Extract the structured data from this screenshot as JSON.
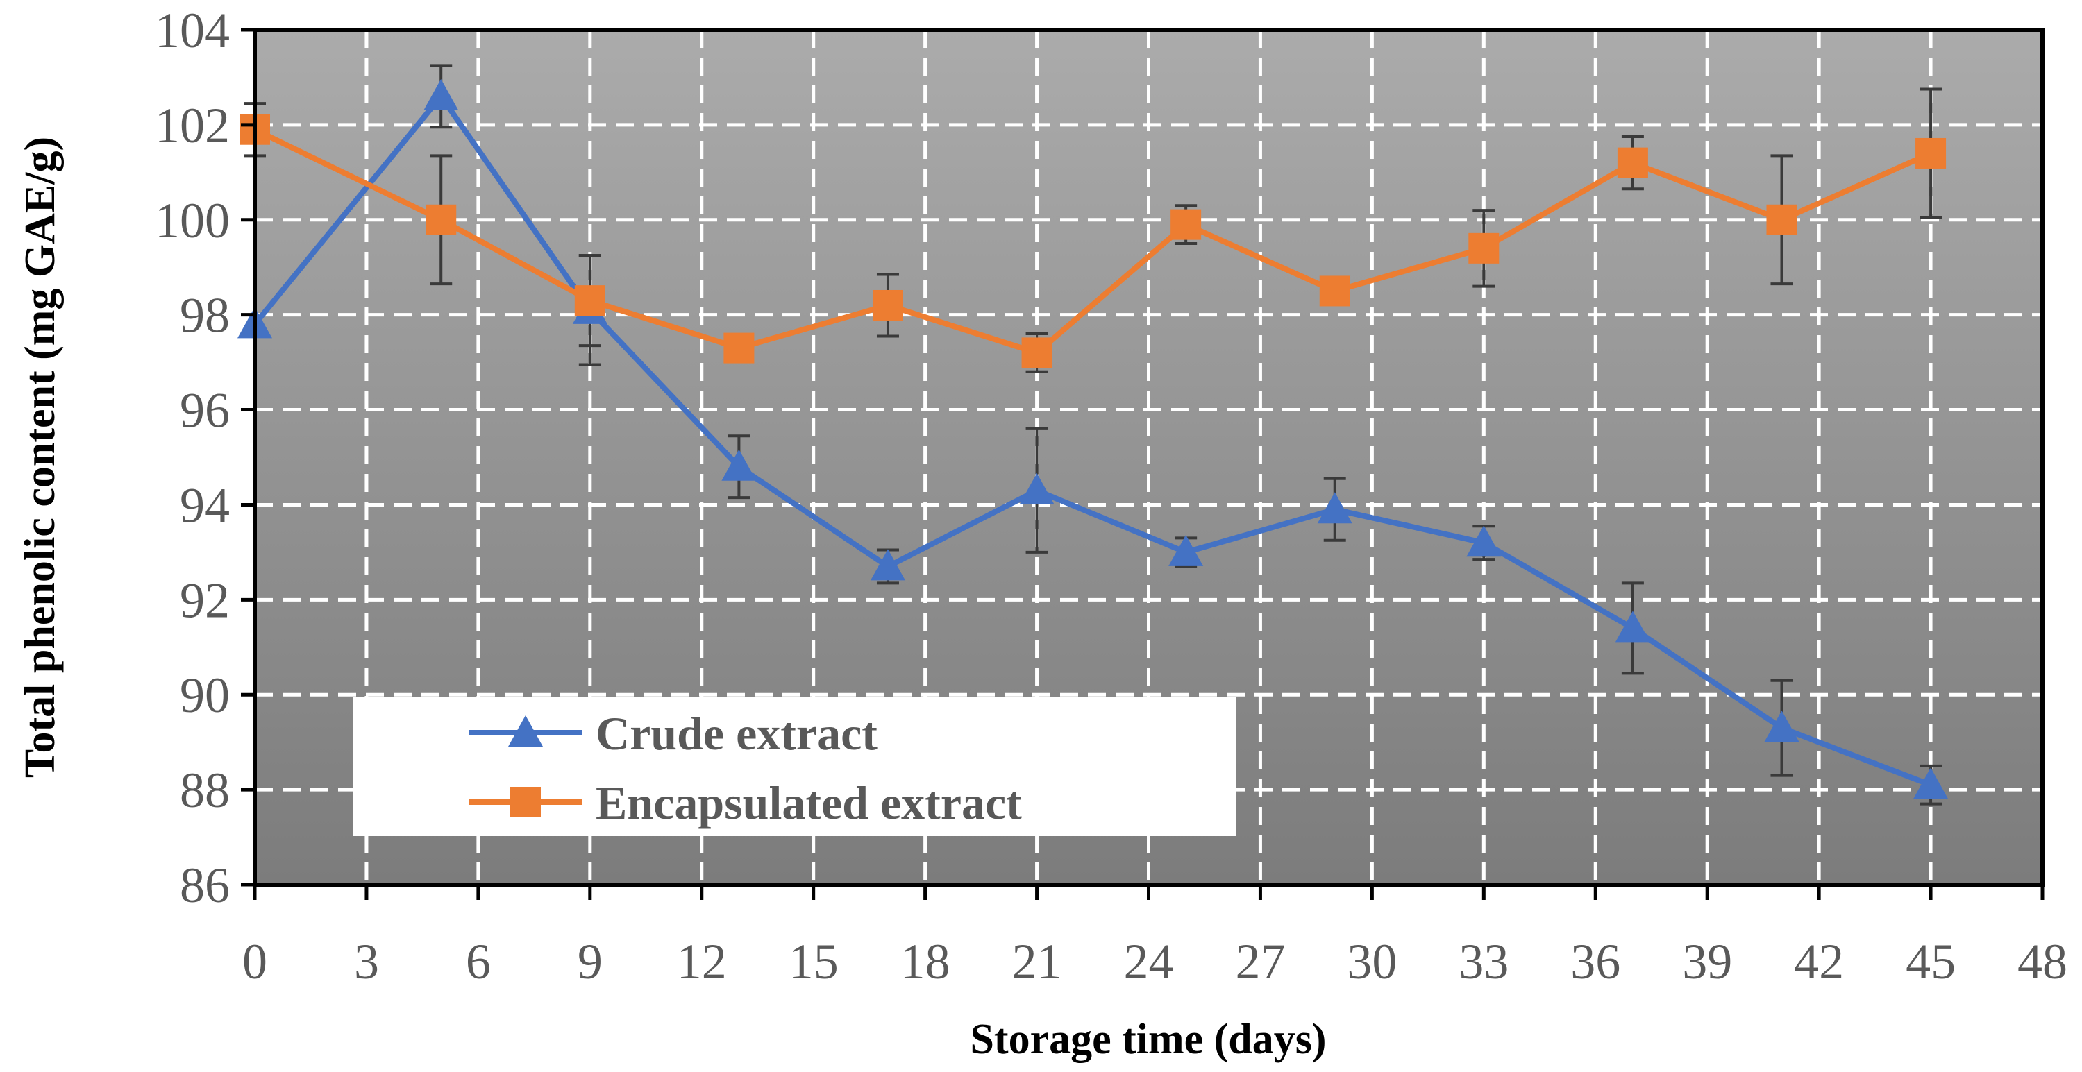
{
  "chart_data": {
    "type": "line",
    "title": "",
    "xlabel": "Storage time (days)",
    "ylabel": "Total phenolic content (mg GAE/g)",
    "xlim": [
      0,
      48
    ],
    "ylim": [
      86,
      104
    ],
    "xticks": [
      0,
      3,
      6,
      9,
      12,
      15,
      18,
      21,
      24,
      27,
      30,
      33,
      36,
      39,
      42,
      45,
      48
    ],
    "yticks": [
      86,
      88,
      90,
      92,
      94,
      96,
      98,
      100,
      102,
      104
    ],
    "grid": true,
    "legend_position": "bottom-left",
    "series": [
      {
        "name": "Crude extract",
        "color": "#4472C4",
        "marker": "triangle",
        "x": [
          0,
          5,
          9,
          13,
          17,
          21,
          25,
          29,
          33,
          37,
          41,
          45
        ],
        "values": [
          97.8,
          102.6,
          98.1,
          94.8,
          92.7,
          94.3,
          93.0,
          93.9,
          93.2,
          91.4,
          89.3,
          88.1
        ],
        "errors": [
          0.0,
          0.65,
          1.15,
          0.65,
          0.35,
          1.3,
          0.3,
          0.65,
          0.35,
          0.95,
          1.0,
          0.4
        ]
      },
      {
        "name": "Encapsulated extract",
        "color": "#ED7D31",
        "marker": "square",
        "x": [
          0,
          5,
          9,
          13,
          17,
          21,
          25,
          29,
          33,
          37,
          41,
          45
        ],
        "values": [
          101.9,
          100.0,
          98.3,
          97.3,
          98.2,
          97.2,
          99.9,
          98.5,
          99.4,
          101.2,
          100.0,
          101.4
        ],
        "errors": [
          0.55,
          1.35,
          0.95,
          0.0,
          0.65,
          0.4,
          0.4,
          0.0,
          0.8,
          0.55,
          1.35,
          1.35
        ]
      }
    ]
  }
}
